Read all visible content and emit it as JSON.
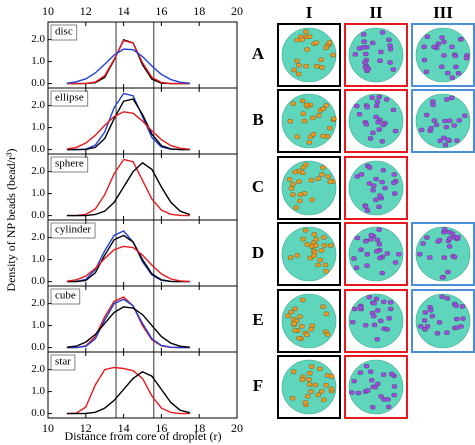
{
  "figure": {
    "ylabel": "Density of NP beads (bead/r³)",
    "xlabel": "Distance from core of droplet (r)"
  },
  "panels": {
    "columns": [
      "I",
      "II",
      "III"
    ],
    "rows": [
      "A",
      "B",
      "C",
      "D",
      "E",
      "F"
    ]
  },
  "chart_data": [
    {
      "type": "line",
      "label": "disc",
      "x": [
        11,
        11.5,
        12,
        12.5,
        13,
        13.5,
        14,
        14.5,
        15,
        15.5,
        16,
        16.5,
        17,
        17.5
      ],
      "xlim": [
        10,
        20
      ],
      "xticks": [
        10,
        12,
        14,
        16,
        18,
        20
      ],
      "ylim": [
        -0.2,
        2.8
      ],
      "yticks": [
        {
          "value": 0,
          "label": "0.0"
        },
        {
          "value": 1,
          "label": "1.0"
        },
        {
          "value": 2,
          "label": "2.0"
        }
      ],
      "vlines": [
        13.6,
        15.6
      ],
      "series": [
        {
          "color": "#000000",
          "values": [
            0,
            0,
            0,
            0.04,
            0.28,
            1.07,
            1.99,
            1.85,
            0.86,
            0.2,
            0.02,
            0,
            0,
            0
          ]
        },
        {
          "color": "#e8191e",
          "values": [
            0,
            0,
            0.01,
            0.07,
            0.36,
            1.1,
            1.95,
            1.85,
            0.95,
            0.28,
            0.05,
            0,
            0,
            0
          ]
        },
        {
          "color": "#2040d8",
          "values": [
            0.02,
            0.08,
            0.22,
            0.48,
            0.88,
            1.3,
            1.57,
            1.54,
            1.23,
            0.8,
            0.42,
            0.18,
            0.06,
            0.02
          ]
        }
      ]
    },
    {
      "type": "line",
      "label": "ellipse",
      "x": [
        11,
        11.5,
        12,
        12.5,
        13,
        13.5,
        14,
        14.5,
        15,
        15.5,
        16,
        16.5,
        17,
        17.5
      ],
      "xlim": [
        10,
        20
      ],
      "xticks": [
        10,
        12,
        14,
        16,
        18,
        20
      ],
      "ylim": [
        -0.2,
        2.8
      ],
      "yticks": [
        {
          "value": 0,
          "label": "0.0"
        },
        {
          "value": 1,
          "label": "1.0"
        },
        {
          "value": 2,
          "label": "2.0"
        }
      ],
      "vlines": [
        13.6,
        15.6
      ],
      "series": [
        {
          "color": "#2040d8",
          "values": [
            0,
            0,
            0.02,
            0.2,
            0.8,
            1.9,
            2.55,
            2.45,
            1.5,
            0.55,
            0.12,
            0.02,
            0,
            0
          ]
        },
        {
          "color": "#000000",
          "values": [
            0,
            0,
            0.01,
            0.1,
            0.5,
            1.4,
            2.2,
            2.3,
            1.6,
            0.7,
            0.18,
            0.03,
            0,
            0
          ]
        },
        {
          "color": "#e8191e",
          "values": [
            0.03,
            0.1,
            0.3,
            0.65,
            1.1,
            1.5,
            1.72,
            1.65,
            1.3,
            0.85,
            0.45,
            0.18,
            0.06,
            0.02
          ]
        }
      ]
    },
    {
      "type": "line",
      "label": "sphere",
      "x": [
        11,
        11.5,
        12,
        12.5,
        13,
        13.5,
        14,
        14.5,
        15,
        15.5,
        16,
        16.5,
        17,
        17.5
      ],
      "xlim": [
        10,
        20
      ],
      "xticks": [
        10,
        12,
        14,
        16,
        18,
        20
      ],
      "ylim": [
        -0.2,
        2.8
      ],
      "yticks": [
        {
          "value": 0,
          "label": "0.0"
        },
        {
          "value": 1,
          "label": "1.0"
        },
        {
          "value": 2,
          "label": "2.0"
        }
      ],
      "vlines": [
        13.6,
        15.6
      ],
      "series": [
        {
          "color": "#e8191e",
          "values": [
            0,
            0,
            0.06,
            0.3,
            0.95,
            1.9,
            2.55,
            2.45,
            1.6,
            0.75,
            0.25,
            0.06,
            0.01,
            0
          ]
        },
        {
          "color": "#000000",
          "values": [
            0,
            0,
            0,
            0.05,
            0.2,
            0.6,
            1.3,
            2.0,
            2.4,
            2.1,
            1.3,
            0.6,
            0.2,
            0.05
          ]
        }
      ]
    },
    {
      "type": "line",
      "label": "cylinder",
      "x": [
        11,
        11.5,
        12,
        12.5,
        13,
        13.5,
        14,
        14.5,
        15,
        15.5,
        16,
        16.5,
        17,
        17.5
      ],
      "xlim": [
        10,
        20
      ],
      "xticks": [
        10,
        12,
        14,
        16,
        18,
        20
      ],
      "ylim": [
        -0.2,
        2.8
      ],
      "yticks": [
        {
          "value": 0,
          "label": "0.0"
        },
        {
          "value": 1,
          "label": "1.0"
        },
        {
          "value": 2,
          "label": "2.0"
        }
      ],
      "vlines": [
        13.6,
        15.6
      ],
      "series": [
        {
          "color": "#2040d8",
          "values": [
            0,
            0.01,
            0.1,
            0.55,
            1.4,
            2.1,
            2.3,
            1.8,
            0.9,
            0.3,
            0.06,
            0.01,
            0,
            0
          ]
        },
        {
          "color": "#000000",
          "values": [
            0,
            0,
            0.05,
            0.4,
            1.2,
            1.9,
            2.1,
            1.8,
            1.0,
            0.35,
            0.08,
            0.01,
            0,
            0
          ]
        },
        {
          "color": "#e8191e",
          "values": [
            0.02,
            0.08,
            0.25,
            0.6,
            1.05,
            1.45,
            1.6,
            1.55,
            1.2,
            0.75,
            0.35,
            0.12,
            0.03,
            0
          ]
        }
      ]
    },
    {
      "type": "line",
      "label": "cube",
      "x": [
        11,
        11.5,
        12,
        12.5,
        13,
        13.5,
        14,
        14.5,
        15,
        15.5,
        16,
        16.5,
        17,
        17.5
      ],
      "xlim": [
        10,
        20
      ],
      "xticks": [
        10,
        12,
        14,
        16,
        18,
        20
      ],
      "ylim": [
        -0.2,
        2.8
      ],
      "yticks": [
        {
          "value": 0,
          "label": "0.0"
        },
        {
          "value": 1,
          "label": "1.0"
        },
        {
          "value": 2,
          "label": "2.0"
        }
      ],
      "vlines": [
        13.6,
        15.6
      ],
      "series": [
        {
          "color": "#e8191e",
          "values": [
            0,
            0,
            0.08,
            0.5,
            1.4,
            2.1,
            2.3,
            1.9,
            1.0,
            0.35,
            0.08,
            0.01,
            0,
            0
          ]
        },
        {
          "color": "#2040d8",
          "values": [
            0,
            0,
            0.06,
            0.4,
            1.25,
            2.0,
            2.2,
            1.9,
            1.1,
            0.4,
            0.1,
            0.02,
            0,
            0
          ]
        },
        {
          "color": "#000000",
          "values": [
            0.02,
            0.07,
            0.25,
            0.6,
            1.1,
            1.6,
            1.85,
            1.8,
            1.5,
            1.0,
            0.5,
            0.2,
            0.06,
            0.02
          ]
        }
      ]
    },
    {
      "type": "line",
      "label": "star",
      "x": [
        11,
        11.5,
        12,
        12.5,
        13,
        13.5,
        14,
        14.5,
        15,
        15.5,
        16,
        16.5,
        17,
        17.5
      ],
      "xlim": [
        10,
        20
      ],
      "xticks": [
        10,
        12,
        14,
        16,
        18,
        20
      ],
      "ylim": [
        -0.2,
        2.8
      ],
      "yticks": [
        {
          "value": 0,
          "label": "0.0"
        },
        {
          "value": 1,
          "label": "1.0"
        },
        {
          "value": 2,
          "label": "2.0"
        }
      ],
      "vlines": [
        13.6,
        15.6
      ],
      "series": [
        {
          "color": "#e8191e",
          "values": [
            0,
            0.02,
            0.3,
            1.3,
            2.0,
            2.1,
            2.05,
            1.95,
            1.6,
            0.8,
            0.25,
            0.05,
            0,
            0
          ]
        },
        {
          "color": "#000000",
          "values": [
            0,
            0,
            0.01,
            0.06,
            0.25,
            0.6,
            1.1,
            1.6,
            1.9,
            1.7,
            1.1,
            0.5,
            0.15,
            0.04
          ]
        }
      ]
    }
  ]
}
